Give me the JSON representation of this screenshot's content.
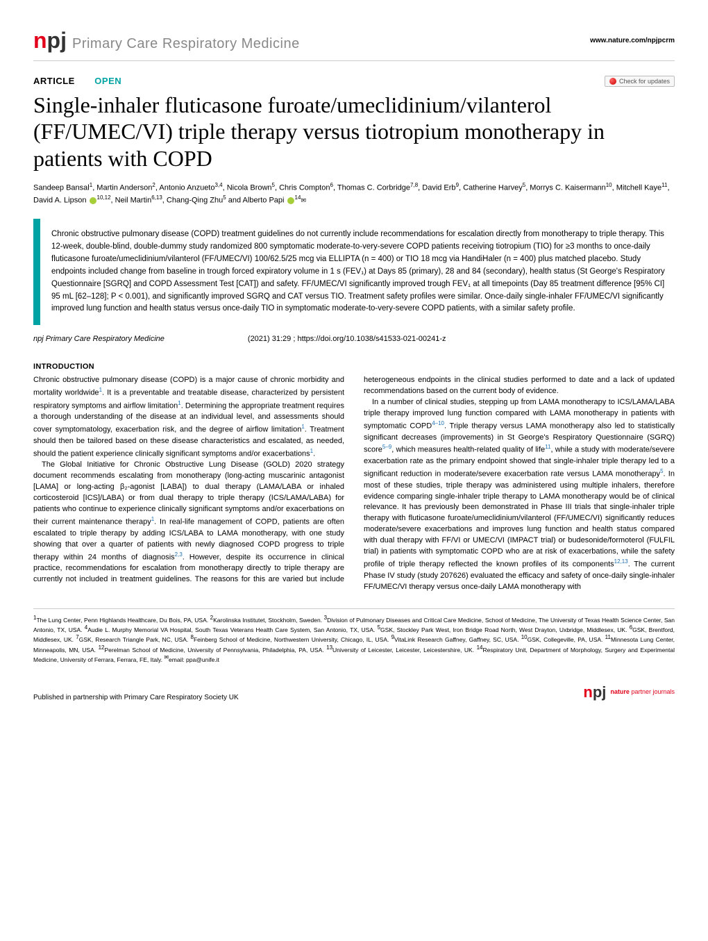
{
  "header": {
    "journal_prefix": "n",
    "journal_badge": "pj",
    "journal_name": "Primary Care Respiratory Medicine",
    "site_url": "www.nature.com/npjpcrm"
  },
  "article_tags": {
    "article": "ARTICLE",
    "open": "OPEN",
    "check_updates": "Check for updates"
  },
  "title": "Single-inhaler fluticasone furoate/umeclidinium/vilanterol (FF/UMEC/VI) triple therapy versus tiotropium monotherapy in patients with COPD",
  "authors_html": "Sandeep Bansal<sup>1</sup>, Martin Anderson<sup>2</sup>, Antonio Anzueto<sup>3,4</sup>, Nicola Brown<sup>5</sup>, Chris Compton<sup>6</sup>, Thomas C. Corbridge<sup>7,8</sup>, David Erb<sup>9</sup>, Catherine Harvey<sup>5</sup>, Morrys C. Kaisermann<sup>10</sup>, Mitchell Kaye<sup>11</sup>, David A. Lipson <span class='orcid'></span><sup>10,12</sup>, Neil Martin<sup>6,13</sup>, Chang-Qing Zhu<sup>5</sup> and Alberto Papi <span class='orcid'></span><sup>14</sup><span class='envelope'>✉</span>",
  "abstract": "Chronic obstructive pulmonary disease (COPD) treatment guidelines do not currently include recommendations for escalation directly from monotherapy to triple therapy. This 12-week, double-blind, double-dummy study randomized 800 symptomatic moderate-to-very-severe COPD patients receiving tiotropium (TIO) for ≥3 months to once-daily fluticasone furoate/umeclidinium/vilanterol (FF/UMEC/VI) 100/62.5/25 mcg via ELLIPTA (n = 400) or TIO 18 mcg via HandiHaler (n = 400) plus matched placebo. Study endpoints included change from baseline in trough forced expiratory volume in 1 s (FEV₁) at Days 85 (primary), 28 and 84 (secondary), health status (St George's Respiratory Questionnaire [SGRQ] and COPD Assessment Test [CAT]) and safety. FF/UMEC/VI significantly improved trough FEV₁ at all timepoints (Day 85 treatment difference [95% CI] 95 mL [62–128]; P < 0.001), and significantly improved SGRQ and CAT versus TIO. Treatment safety profiles were similar. Once-daily single-inhaler FF/UMEC/VI significantly improved lung function and health status versus once-daily TIO in symptomatic moderate-to-very-severe COPD patients, with a similar safety profile.",
  "citation": {
    "journal": "npj Primary Care Respiratory Medicine",
    "info": "(2021) 31:29 ; https://doi.org/10.1038/s41533-021-00241-z"
  },
  "intro_heading": "INTRODUCTION",
  "intro_p1": "Chronic obstructive pulmonary disease (COPD) is a major cause of chronic morbidity and mortality worldwide<sup class='ref-link'>1</sup>. It is a preventable and treatable disease, characterized by persistent respiratory symptoms and airflow limitation<sup class='ref-link'>1</sup>. Determining the appropriate treatment requires a thorough understanding of the disease at an individual level, and assessments should cover symptomatology, exacerbation risk, and the degree of airflow limitation<sup class='ref-link'>1</sup>. Treatment should then be tailored based on these disease characteristics and escalated, as needed, should the patient experience clinically significant symptoms and/or exacerbations<sup class='ref-link'>1</sup>.",
  "intro_p2": "The Global Initiative for Chronic Obstructive Lung Disease (GOLD) 2020 strategy document recommends escalating from monotherapy (long-acting muscarinic antagonist [LAMA] or long-acting β₂-agonist [LABA]) to dual therapy (LAMA/LABA or inhaled corticosteroid [ICS]/LABA) or from dual therapy to triple therapy (ICS/LAMA/LABA) for patients who continue to experience clinically significant symptoms and/or exacerbations on their current maintenance therapy<sup class='ref-link'>1</sup>. In real-life management of COPD, patients are often escalated to triple therapy by adding ICS/LABA to LAMA monotherapy, with one study showing that over a quarter of patients with newly diagnosed COPD progress to triple therapy within 24 months of diagnosis<sup class='ref-link'>2,3</sup>. However, despite its occurrence in clinical practice, recommendations for escalation from monotherapy directly to triple therapy are currently not included in treatment guidelines. The reasons for this are varied but include heterogeneous endpoints in the clinical studies performed to date and a lack of updated recommendations based on the current body of evidence.",
  "intro_p3": "In a number of clinical studies, stepping up from LAMA monotherapy to ICS/LAMA/LABA triple therapy improved lung function compared with LAMA monotherapy in patients with symptomatic COPD<sup class='ref-link'>4–10</sup>. Triple therapy versus LAMA monotherapy also led to statistically significant decreases (improvements) in St George's Respiratory Questionnaire (SGRQ) score<sup class='ref-link'>5–9</sup>, which measures health-related quality of life<sup class='ref-link'>11</sup>, while a study with moderate/severe exacerbation rate as the primary endpoint showed that single-inhaler triple therapy led to a significant reduction in moderate/severe exacerbation rate versus LAMA monotherapy<sup class='ref-link'>5</sup>. In most of these studies, triple therapy was administered using multiple inhalers, therefore evidence comparing single-inhaler triple therapy to LAMA monotherapy would be of clinical relevance. It has previously been demonstrated in Phase III trials that single-inhaler triple therapy with fluticasone furoate/umeclidinium/vilanterol (FF/UMEC/VI) significantly reduces moderate/severe exacerbations and improves lung function and health status compared with dual therapy with FF/VI or UMEC/VI (IMPACT trial) or budesonide/formoterol (FULFIL trial) in patients with symptomatic COPD who are at risk of exacerbations, while the safety profile of triple therapy reflected the known profiles of its components<sup class='ref-link'>12,13</sup>. The current Phase IV study (study 207626) evaluated the efficacy and safety of once-daily single-inhaler FF/UMEC/VI therapy versus once-daily LAMA monotherapy with",
  "affiliations": "<sup>1</sup>The Lung Center, Penn Highlands Healthcare, Du Bois, PA, USA. <sup>2</sup>Karolinska Institutet, Stockholm, Sweden. <sup>3</sup>Division of Pulmonary Diseases and Critical Care Medicine, School of Medicine, The University of Texas Health Science Center, San Antonio, TX, USA. <sup>4</sup>Audie L. Murphy Memorial VA Hospital, South Texas Veterans Health Care System, San Antonio, TX, USA. <sup>5</sup>GSK, Stockley Park West, Iron Bridge Road North, West Drayton, Uxbridge, Middlesex, UK. <sup>6</sup>GSK, Brentford, Middlesex, UK. <sup>7</sup>GSK, Research Triangle Park, NC, USA. <sup>8</sup>Feinberg School of Medicine, Northwestern University, Chicago, IL, USA. <sup>9</sup>VitaLink Research Gaffney, Gaffney, SC, USA. <sup>10</sup>GSK, Collegeville, PA, USA. <sup>11</sup>Minnesota Lung Center, Minneapolis, MN, USA. <sup>12</sup>Perelman School of Medicine, University of Pennsylvania, Philadelphia, PA, USA. <sup>13</sup>University of Leicester, Leicester, Leicestershire, UK. <sup>14</sup>Respiratory Unit, Department of Morphology, Surgery and Experimental Medicine, University of Ferrara, Ferrara, FE, Italy. <sup>✉</sup>email: ppa@unife.it",
  "footer": {
    "left": "Published in partnership with Primary Care Respiratory Society UK",
    "logo_n": "n",
    "logo_pj": "pj",
    "partner_line1": "nature",
    "partner_line2": "partner journals"
  }
}
